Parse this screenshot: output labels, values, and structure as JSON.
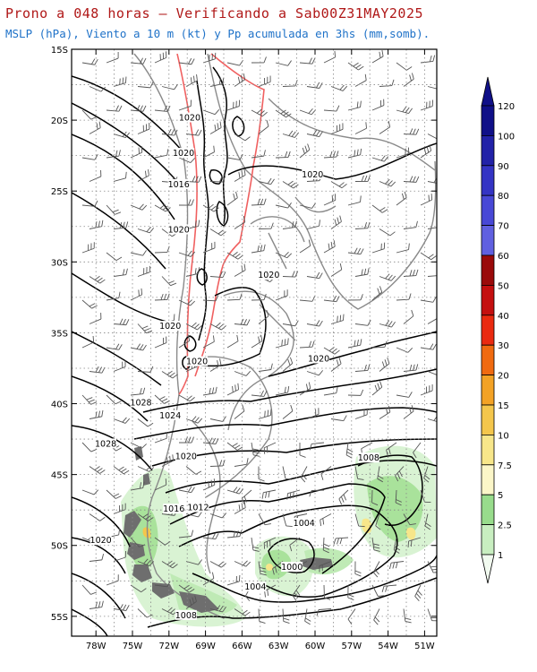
{
  "title": "Prono a 048 horas — Verificando a Sab00Z31MAY2025",
  "subtitle": "MSLP (hPa), Viento a 10 m (kt) y Pp acumulada en 3hs (mm,somb).",
  "lat_labels": [
    "15S",
    "20S",
    "25S",
    "30S",
    "35S",
    "40S",
    "45S",
    "50S",
    "55S"
  ],
  "lon_labels": [
    "78W",
    "75W",
    "72W",
    "69W",
    "66W",
    "63W",
    "60W",
    "57W",
    "54W",
    "51W"
  ],
  "colorbar": {
    "levels": [
      "1",
      "2.5",
      "5",
      "7.5",
      "10",
      "15",
      "20",
      "30",
      "40",
      "50",
      "60",
      "70",
      "80",
      "90",
      "100",
      "120"
    ],
    "colors": [
      "#f2fbf0",
      "#c8eec0",
      "#98dc8c",
      "#fbf6c8",
      "#f7e68a",
      "#f4c64c",
      "#f3a225",
      "#f06a10",
      "#ea2a10",
      "#c40f0f",
      "#9a0a0a",
      "#6060e0",
      "#4848d6",
      "#3434c4",
      "#2222a8",
      "#101088"
    ]
  },
  "isobar_labels": [
    {
      "text": "1020",
      "lat": -19.9,
      "lon": -70.3
    },
    {
      "text": "1020",
      "lat": -22.4,
      "lon": -70.8
    },
    {
      "text": "1016",
      "lat": -24.6,
      "lon": -71.2
    },
    {
      "text": "1020",
      "lat": -23.9,
      "lon": -60.2
    },
    {
      "text": "1020",
      "lat": -27.8,
      "lon": -71.2
    },
    {
      "text": "1020",
      "lat": -31.0,
      "lon": -63.8
    },
    {
      "text": "1020",
      "lat": -34.6,
      "lon": -71.9
    },
    {
      "text": "1020",
      "lat": -37.1,
      "lon": -69.7
    },
    {
      "text": "1020",
      "lat": -36.9,
      "lon": -59.7
    },
    {
      "text": "1028",
      "lat": -40.0,
      "lon": -74.3
    },
    {
      "text": "1024",
      "lat": -40.9,
      "lon": -71.9
    },
    {
      "text": "1028",
      "lat": -42.9,
      "lon": -77.2
    },
    {
      "text": "1020",
      "lat": -43.8,
      "lon": -70.6
    },
    {
      "text": "1008",
      "lat": -43.9,
      "lon": -55.6
    },
    {
      "text": "1016",
      "lat": -47.5,
      "lon": -71.6
    },
    {
      "text": "1012",
      "lat": -47.4,
      "lon": -69.6
    },
    {
      "text": "1004",
      "lat": -48.5,
      "lon": -60.9
    },
    {
      "text": "1020",
      "lat": -49.7,
      "lon": -77.6
    },
    {
      "text": "1000",
      "lat": -51.6,
      "lon": -61.9
    },
    {
      "text": "1004",
      "lat": -53.0,
      "lon": -64.9
    },
    {
      "text": "1008",
      "lat": -55.0,
      "lon": -70.6
    }
  ]
}
